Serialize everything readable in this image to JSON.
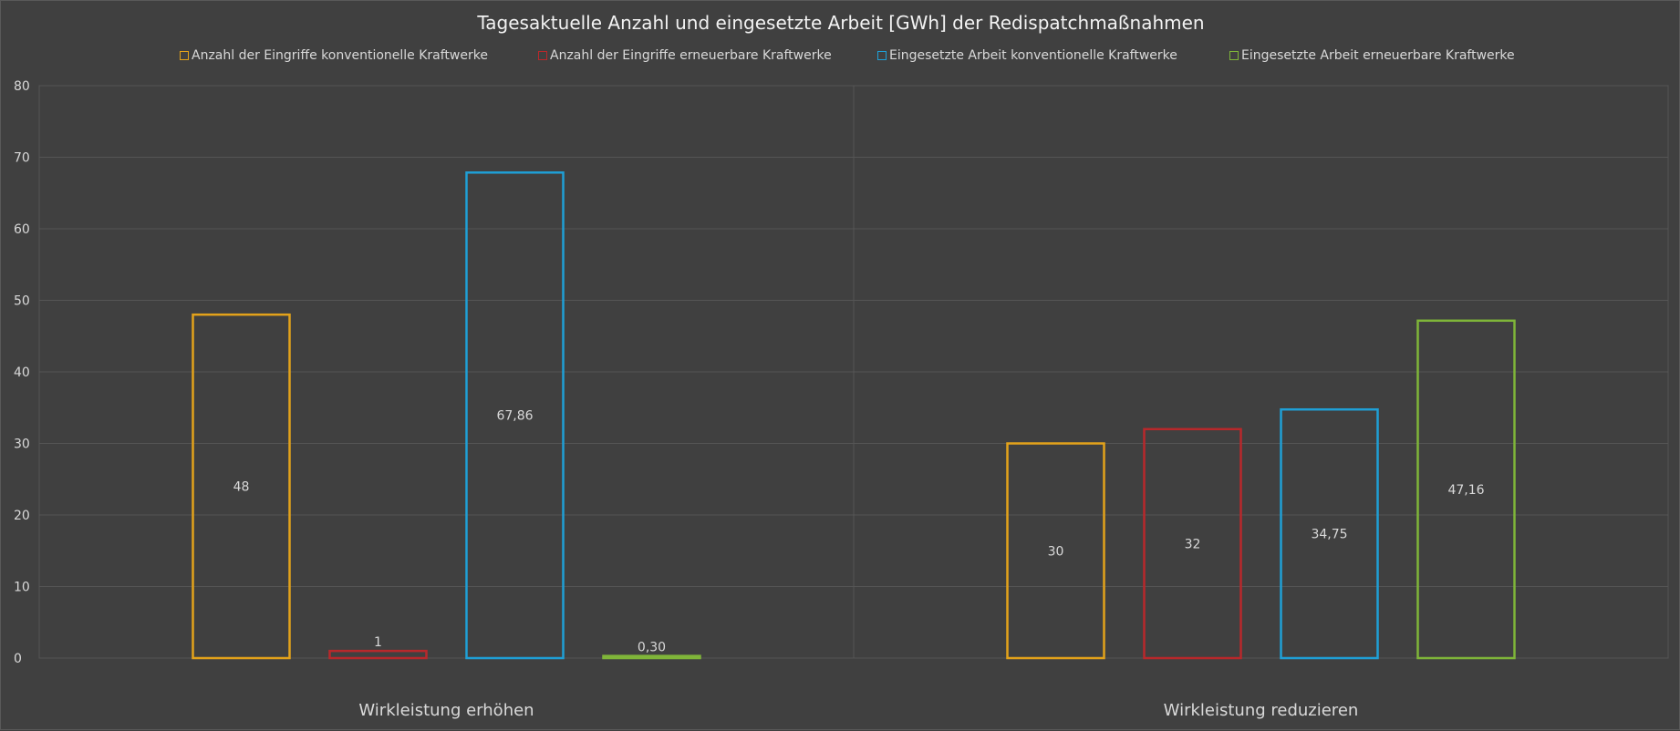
{
  "chart_data": {
    "type": "bar",
    "title": "Tagesaktuelle Anzahl und eingesetzte Arbeit [GWh] der Redispatchmaßnahmen",
    "categories": [
      "Wirkleistung erhöhen",
      "Wirkleistung reduzieren"
    ],
    "series": [
      {
        "name": "Anzahl der Eingriffe konventionelle Kraftwerke",
        "color": "#e3a21a",
        "values": [
          48,
          30
        ],
        "labels": [
          "48",
          "30"
        ]
      },
      {
        "name": "Anzahl der Eingriffe erneuerbare Kraftwerke",
        "color": "#b8282b",
        "values": [
          1,
          32
        ],
        "labels": [
          "1",
          "32"
        ]
      },
      {
        "name": "Eingesetzte Arbeit  konventionelle Kraftwerke",
        "color": "#1f9fd6",
        "values": [
          67.86,
          34.75
        ],
        "labels": [
          "67,86",
          "34,75"
        ]
      },
      {
        "name": "Eingesetzte Arbeit erneuerbare Kraftwerke",
        "color": "#7fb539",
        "values": [
          0.3,
          47.16
        ],
        "labels": [
          "0,30",
          "47,16"
        ]
      }
    ],
    "y_ticks": [
      "0",
      "10",
      "20",
      "30",
      "40",
      "50",
      "60",
      "70",
      "80"
    ],
    "ylim": [
      0,
      80
    ],
    "grid": true,
    "legend": "top"
  }
}
